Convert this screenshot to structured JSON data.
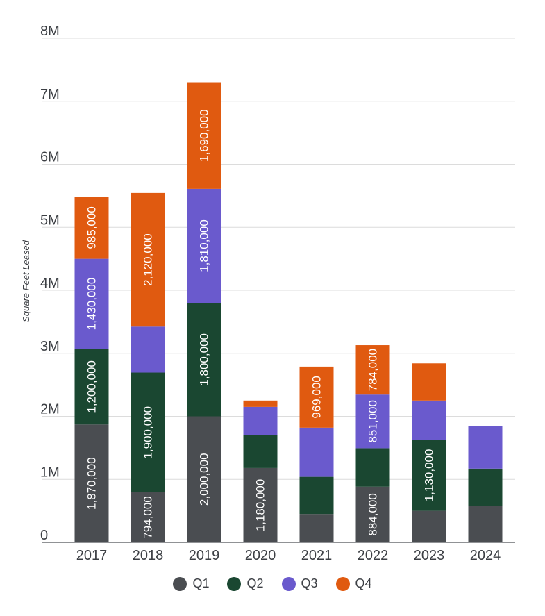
{
  "chart_data": {
    "type": "bar",
    "stacked": true,
    "title": "",
    "xlabel": "",
    "ylabel": "Square Feet Leased",
    "ylim": [
      0,
      8000000
    ],
    "yticks": [
      0,
      1000000,
      2000000,
      3000000,
      4000000,
      5000000,
      6000000,
      7000000,
      8000000
    ],
    "ytick_labels": [
      "0",
      "1M",
      "2M",
      "3M",
      "4M",
      "5M",
      "6M",
      "7M",
      "8M"
    ],
    "grid": true,
    "legend_position": "bottom-center",
    "categories": [
      "2017",
      "2018",
      "2019",
      "2020",
      "2021",
      "2022",
      "2023",
      "2024"
    ],
    "series": [
      {
        "name": "Q1",
        "color": "#4a4d51",
        "values": [
          1870000,
          794000,
          2000000,
          1180000,
          450000,
          884000,
          500000,
          580000
        ],
        "labels": [
          "1,870,000",
          "794,000",
          "2,000,000",
          "1,180,000",
          "",
          "884,000",
          "",
          ""
        ]
      },
      {
        "name": "Q2",
        "color": "#1a4731",
        "values": [
          1200000,
          1900000,
          1800000,
          520000,
          590000,
          610000,
          1130000,
          590000
        ],
        "labels": [
          "1,200,000",
          "1,900,000",
          "1,800,000",
          "",
          "",
          "",
          "1,130,000",
          ""
        ]
      },
      {
        "name": "Q3",
        "color": "#6a5acd",
        "values": [
          1430000,
          730000,
          1810000,
          450000,
          780000,
          851000,
          620000,
          680000
        ],
        "labels": [
          "1,430,000",
          "",
          "1,810,000",
          "",
          "",
          "851,000",
          "",
          ""
        ]
      },
      {
        "name": "Q4",
        "color": "#e05a10",
        "values": [
          985000,
          2120000,
          1690000,
          100000,
          969000,
          784000,
          590000,
          0
        ],
        "labels": [
          "985,000",
          "2,120,000",
          "1,690,000",
          "",
          "969,000",
          "784,000",
          "",
          ""
        ]
      }
    ]
  }
}
